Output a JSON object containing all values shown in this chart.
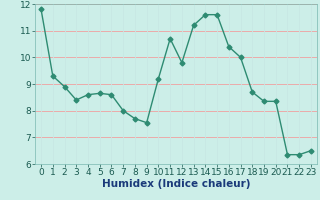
{
  "x": [
    0,
    1,
    2,
    3,
    4,
    5,
    6,
    7,
    8,
    9,
    10,
    11,
    12,
    13,
    14,
    15,
    16,
    17,
    18,
    19,
    20,
    21,
    22,
    23
  ],
  "y": [
    11.8,
    9.3,
    8.9,
    8.4,
    8.6,
    8.65,
    8.6,
    8.0,
    7.7,
    7.55,
    9.2,
    10.7,
    9.8,
    11.2,
    11.6,
    11.6,
    10.4,
    10.0,
    8.7,
    8.35,
    8.35,
    6.35,
    6.35,
    6.5
  ],
  "line_color": "#2e8b72",
  "marker": "D",
  "marker_size": 2.5,
  "bg_color": "#cceee8",
  "grid_color_h": "#f0a0a0",
  "grid_color_v": "#c8e8e4",
  "xlabel": "Humidex (Indice chaleur)",
  "ylim": [
    6,
    12
  ],
  "xlim": [
    -0.5,
    23.5
  ],
  "yticks": [
    6,
    7,
    8,
    9,
    10,
    11,
    12
  ],
  "xticks": [
    0,
    1,
    2,
    3,
    4,
    5,
    6,
    7,
    8,
    9,
    10,
    11,
    12,
    13,
    14,
    15,
    16,
    17,
    18,
    19,
    20,
    21,
    22,
    23
  ],
  "tick_fontsize": 6.5,
  "label_fontsize": 7.5,
  "tick_color": "#1a5a50",
  "label_color": "#1a3a7a"
}
